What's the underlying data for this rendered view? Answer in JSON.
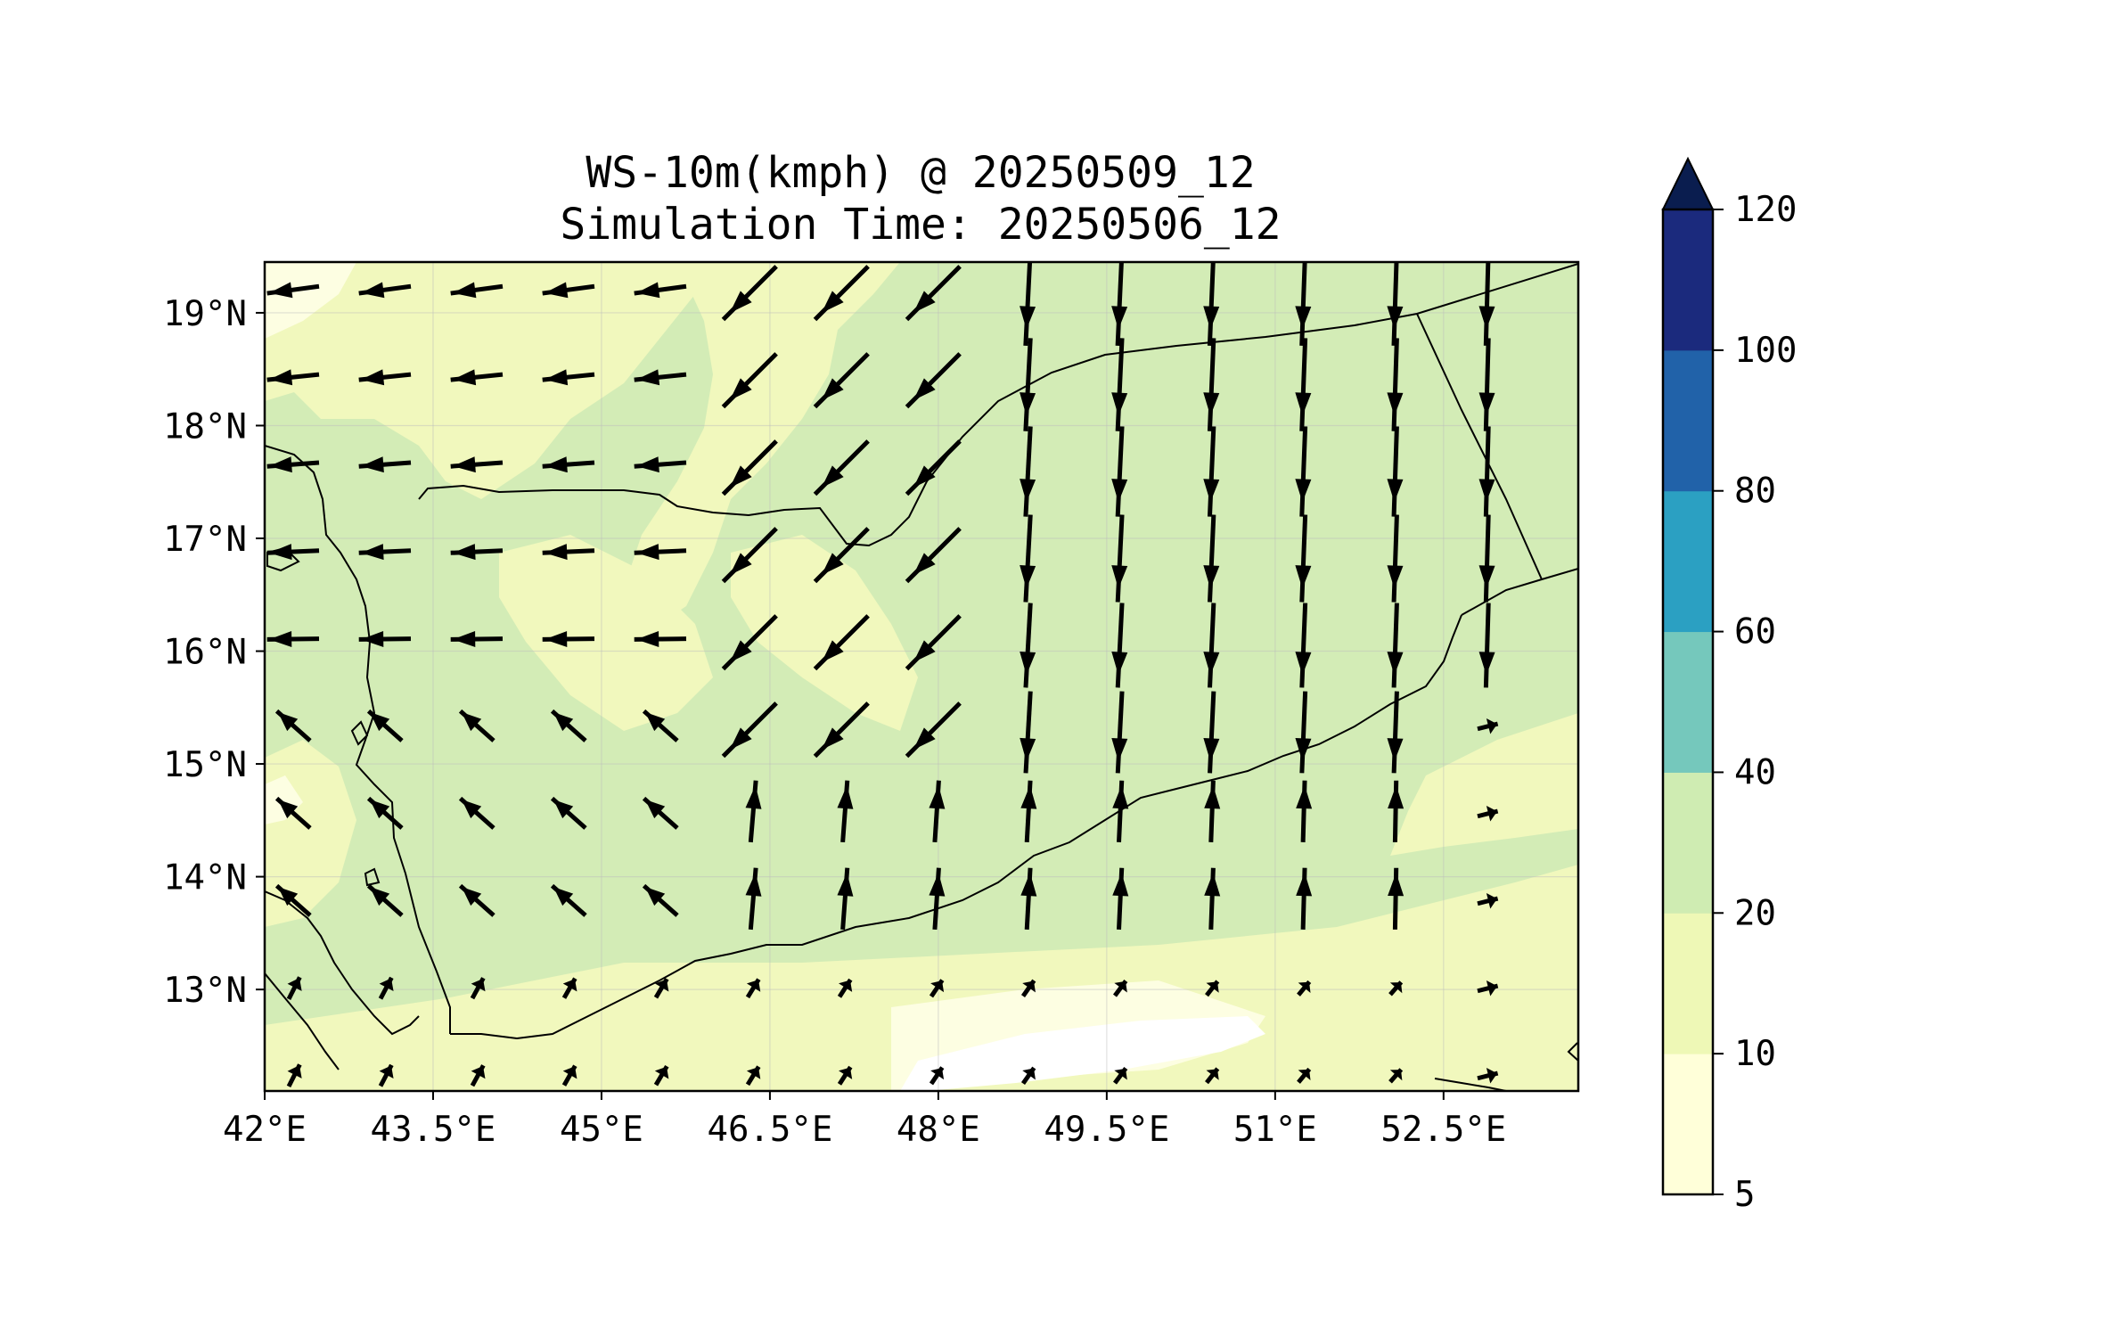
{
  "map": {
    "title_line1": "WS-10m(kmph) @ 20250509_12",
    "title_line2": "Simulation Time: 20250506_12",
    "region": "Yemen / Gulf of Aden",
    "lon_range": [
      42.0,
      53.7
    ],
    "lat_range": [
      12.1,
      19.45
    ],
    "lon_ticks": [
      "42°E",
      "43.5°E",
      "45°E",
      "46.5°E",
      "48°E",
      "49.5°E",
      "51°E",
      "52.5°E"
    ],
    "lat_ticks": [
      "19°N",
      "18°N",
      "17°N",
      "16°N",
      "15°N",
      "14°N",
      "13°N"
    ],
    "gridlines": true,
    "field_background_color": "#d3ecb6",
    "wind_vector_color": "#000000",
    "vectors": "wind arrows on a regular lon/lat grid; northerly flow over the Arabian interior turning westerly/southwesterly over the Gulf of Aden"
  },
  "colorbar": {
    "levels": [
      "5",
      "10",
      "20",
      "40",
      "60",
      "80",
      "100",
      "120"
    ],
    "colors": [
      "#ffffd9",
      "#eef8b6",
      "#cfecb2",
      "#75c8bc",
      "#2ba0c2",
      "#2162a9",
      "#1b2a7d",
      "#0a1d4f"
    ],
    "extend": "max"
  }
}
